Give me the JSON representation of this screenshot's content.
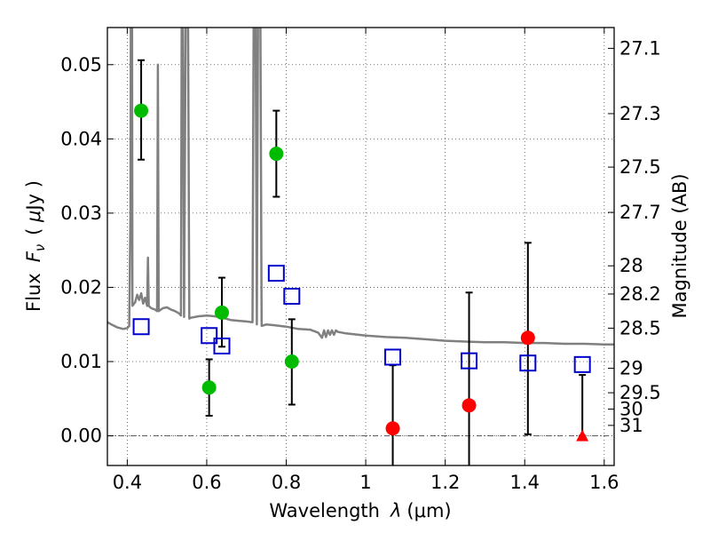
{
  "chart_data": {
    "type": "scatter",
    "xlabel": "Wavelength  λ (μm)",
    "ylabel": "Flux  Fν  ( μJy )",
    "ylabel_parts": {
      "prefix": "Flux",
      "symbol": "F",
      "subscript": "ν",
      "unit_open": "( ",
      "unit_mu": "μ",
      "unit_rest": "Jy )"
    },
    "xlabel_parts": {
      "prefix": "Wavelength",
      "symbol": "λ",
      "unit": "(μm)"
    },
    "y2label": "Magnitude (AB)",
    "xlim": [
      0.35,
      1.625
    ],
    "ylim": [
      -0.004,
      0.055
    ],
    "grid": true,
    "x_ticks": [
      0.4,
      0.6,
      0.8,
      1.0,
      1.2,
      1.4,
      1.6
    ],
    "x_tick_labels": [
      "0.4",
      "0.6",
      "0.8",
      "1",
      "1.2",
      "1.4",
      "1.6"
    ],
    "y_ticks": [
      0.0,
      0.01,
      0.02,
      0.03,
      0.04,
      0.05
    ],
    "y_tick_labels": [
      "0.00",
      "0.01",
      "0.02",
      "0.03",
      "0.04",
      "0.05"
    ],
    "mag_ticks": [
      {
        "label": "27.1",
        "flux": 0.0522
      },
      {
        "label": "27.3",
        "flux": 0.0434
      },
      {
        "label": "27.5",
        "flux": 0.0362
      },
      {
        "label": "27.7",
        "flux": 0.0301
      },
      {
        "label": "28",
        "flux": 0.0229
      },
      {
        "label": "28.2",
        "flux": 0.0191
      },
      {
        "label": "28.5",
        "flux": 0.0145
      },
      {
        "label": "29",
        "flux": 0.0091
      },
      {
        "label": "29.5",
        "flux": 0.0058
      },
      {
        "label": "30",
        "flux": 0.0036
      },
      {
        "label": "31",
        "flux": 0.0014
      }
    ],
    "series": [
      {
        "name": "green detections",
        "marker": "circle",
        "color": "#00bb00",
        "points": [
          {
            "x": 0.435,
            "y": 0.0438,
            "lo": 0.0372,
            "hi": 0.0506
          },
          {
            "x": 0.606,
            "y": 0.0065,
            "lo": 0.0027,
            "hi": 0.0103
          },
          {
            "x": 0.638,
            "y": 0.0166,
            "lo": 0.012,
            "hi": 0.0213
          },
          {
            "x": 0.775,
            "y": 0.038,
            "lo": 0.0322,
            "hi": 0.0438
          },
          {
            "x": 0.814,
            "y": 0.01,
            "lo": 0.0042,
            "hi": 0.0157
          }
        ]
      },
      {
        "name": "red detections",
        "marker": "circle",
        "color": "#ff0000",
        "points": [
          {
            "x": 1.068,
            "y": 0.001,
            "lo": -0.006,
            "hi": 0.0095
          },
          {
            "x": 1.26,
            "y": 0.0041,
            "lo": -0.006,
            "hi": 0.0193
          },
          {
            "x": 1.408,
            "y": 0.0132,
            "lo": 0.0002,
            "hi": 0.026
          }
        ]
      },
      {
        "name": "red upper limit",
        "marker": "triangle",
        "color": "#ff0000",
        "points": [
          {
            "x": 1.545,
            "y": 0.0,
            "lo": 0.0,
            "hi": 0.0082
          }
        ]
      },
      {
        "name": "model photometry",
        "marker": "square",
        "color": "#0000cc",
        "points": [
          {
            "x": 0.435,
            "y": 0.0147
          },
          {
            "x": 0.606,
            "y": 0.0135
          },
          {
            "x": 0.638,
            "y": 0.0121
          },
          {
            "x": 0.775,
            "y": 0.0219
          },
          {
            "x": 0.814,
            "y": 0.0188
          },
          {
            "x": 1.068,
            "y": 0.0106
          },
          {
            "x": 1.26,
            "y": 0.0101
          },
          {
            "x": 1.408,
            "y": 0.0098
          },
          {
            "x": 1.545,
            "y": 0.0096
          }
        ]
      }
    ],
    "model_spectrum": {
      "name": "SED model",
      "color": "#808080",
      "points": [
        [
          0.35,
          0.0153
        ],
        [
          0.36,
          0.015
        ],
        [
          0.375,
          0.0146
        ],
        [
          0.39,
          0.0144
        ],
        [
          0.4,
          0.0145
        ],
        [
          0.405,
          0.0148
        ],
        [
          0.408,
          0.03
        ],
        [
          0.409,
          0.056
        ],
        [
          0.412,
          0.056
        ],
        [
          0.413,
          0.0175
        ],
        [
          0.42,
          0.018
        ],
        [
          0.425,
          0.019
        ],
        [
          0.43,
          0.0183
        ],
        [
          0.435,
          0.0192
        ],
        [
          0.44,
          0.0178
        ],
        [
          0.445,
          0.0186
        ],
        [
          0.45,
          0.0175
        ],
        [
          0.452,
          0.024
        ],
        [
          0.454,
          0.0175
        ],
        [
          0.46,
          0.0172
        ],
        [
          0.47,
          0.017
        ],
        [
          0.475,
          0.0168
        ],
        [
          0.477,
          0.05
        ],
        [
          0.479,
          0.0168
        ],
        [
          0.49,
          0.0172
        ],
        [
          0.5,
          0.0173
        ],
        [
          0.51,
          0.017
        ],
        [
          0.52,
          0.0168
        ],
        [
          0.53,
          0.0165
        ],
        [
          0.535,
          0.0162
        ],
        [
          0.537,
          0.056
        ],
        [
          0.54,
          0.056
        ],
        [
          0.543,
          0.016
        ],
        [
          0.547,
          0.056
        ],
        [
          0.553,
          0.056
        ],
        [
          0.556,
          0.0158
        ],
        [
          0.56,
          0.0159
        ],
        [
          0.58,
          0.0161
        ],
        [
          0.6,
          0.0162
        ],
        [
          0.62,
          0.0161
        ],
        [
          0.64,
          0.0159
        ],
        [
          0.66,
          0.0156
        ],
        [
          0.68,
          0.0155
        ],
        [
          0.7,
          0.0154
        ],
        [
          0.715,
          0.0153
        ],
        [
          0.718,
          0.056
        ],
        [
          0.723,
          0.056
        ],
        [
          0.726,
          0.015
        ],
        [
          0.729,
          0.056
        ],
        [
          0.735,
          0.056
        ],
        [
          0.738,
          0.0148
        ],
        [
          0.75,
          0.015
        ],
        [
          0.77,
          0.0149
        ],
        [
          0.8,
          0.0147
        ],
        [
          0.83,
          0.0144
        ],
        [
          0.86,
          0.0143
        ],
        [
          0.88,
          0.0139
        ],
        [
          0.89,
          0.0132
        ],
        [
          0.895,
          0.0142
        ],
        [
          0.9,
          0.0133
        ],
        [
          0.905,
          0.0142
        ],
        [
          0.91,
          0.0136
        ],
        [
          0.915,
          0.0142
        ],
        [
          0.92,
          0.0136
        ],
        [
          0.925,
          0.0142
        ],
        [
          0.93,
          0.014
        ],
        [
          0.95,
          0.0138
        ],
        [
          1.0,
          0.0135
        ],
        [
          1.05,
          0.0133
        ],
        [
          1.1,
          0.0132
        ],
        [
          1.15,
          0.013
        ],
        [
          1.2,
          0.0128
        ],
        [
          1.25,
          0.0127
        ],
        [
          1.3,
          0.0126
        ],
        [
          1.35,
          0.0126
        ],
        [
          1.4,
          0.0125
        ],
        [
          1.45,
          0.0125
        ],
        [
          1.5,
          0.0124
        ],
        [
          1.55,
          0.0124
        ],
        [
          1.6,
          0.0123
        ],
        [
          1.625,
          0.0123
        ]
      ]
    }
  }
}
